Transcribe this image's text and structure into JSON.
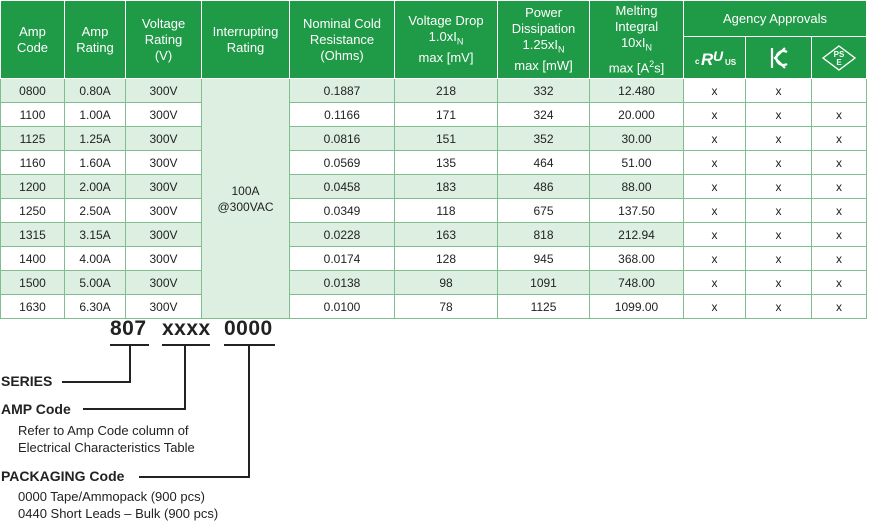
{
  "table": {
    "headers": {
      "amp_code": [
        "Amp",
        "Code"
      ],
      "amp_rating": [
        "Amp",
        "Rating"
      ],
      "voltage_rating": [
        "Voltage",
        "Rating",
        "(V)"
      ],
      "interrupting": [
        "Interrupting",
        "Rating"
      ],
      "nominal": [
        "Nominal Cold",
        "Resistance",
        "(Ohms)"
      ],
      "vdrop": [
        "Voltage Drop",
        "1.0xI",
        "N",
        "max [mV]"
      ],
      "power": [
        "Power",
        "Dissipation",
        "1.25xI",
        "N",
        "max [mW]"
      ],
      "melting": [
        "Melting",
        "Integral",
        "10xI",
        "N",
        "max [A",
        "2",
        "s]"
      ],
      "agency": "Agency Approvals"
    },
    "agency_icons": [
      "ul-recognized-icon",
      "kc-mark-icon",
      "pse-mark-icon"
    ],
    "interrupting_value": [
      "100A",
      "@300VAC"
    ],
    "rows": [
      {
        "code": "0800",
        "rating": "0.80A",
        "voltage": "300V",
        "resistance": "0.1887",
        "vdrop": "218",
        "power": "332",
        "melting": "12.480",
        "ul": "x",
        "kc": "x",
        "pse": ""
      },
      {
        "code": "1100",
        "rating": "1.00A",
        "voltage": "300V",
        "resistance": "0.1166",
        "vdrop": "171",
        "power": "324",
        "melting": "20.000",
        "ul": "x",
        "kc": "x",
        "pse": "x"
      },
      {
        "code": "1125",
        "rating": "1.25A",
        "voltage": "300V",
        "resistance": "0.0816",
        "vdrop": "151",
        "power": "352",
        "melting": "30.00",
        "ul": "x",
        "kc": "x",
        "pse": "x"
      },
      {
        "code": "1160",
        "rating": "1.60A",
        "voltage": "300V",
        "resistance": "0.0569",
        "vdrop": "135",
        "power": "464",
        "melting": "51.00",
        "ul": "x",
        "kc": "x",
        "pse": "x"
      },
      {
        "code": "1200",
        "rating": "2.00A",
        "voltage": "300V",
        "resistance": "0.0458",
        "vdrop": "183",
        "power": "486",
        "melting": "88.00",
        "ul": "x",
        "kc": "x",
        "pse": "x"
      },
      {
        "code": "1250",
        "rating": "2.50A",
        "voltage": "300V",
        "resistance": "0.0349",
        "vdrop": "118",
        "power": "675",
        "melting": "137.50",
        "ul": "x",
        "kc": "x",
        "pse": "x"
      },
      {
        "code": "1315",
        "rating": "3.15A",
        "voltage": "300V",
        "resistance": "0.0228",
        "vdrop": "163",
        "power": "818",
        "melting": "212.94",
        "ul": "x",
        "kc": "x",
        "pse": "x"
      },
      {
        "code": "1400",
        "rating": "4.00A",
        "voltage": "300V",
        "resistance": "0.0174",
        "vdrop": "128",
        "power": "945",
        "melting": "368.00",
        "ul": "x",
        "kc": "x",
        "pse": "x"
      },
      {
        "code": "1500",
        "rating": "5.00A",
        "voltage": "300V",
        "resistance": "0.0138",
        "vdrop": "98",
        "power": "1091",
        "melting": "748.00",
        "ul": "x",
        "kc": "x",
        "pse": "x"
      },
      {
        "code": "1630",
        "rating": "6.30A",
        "voltage": "300V",
        "resistance": "0.0100",
        "vdrop": "78",
        "power": "1125",
        "melting": "1099.00",
        "ul": "x",
        "kc": "x",
        "pse": "x"
      }
    ],
    "colors": {
      "header_green": "#1f9a47",
      "shade": "#dcefe0"
    }
  },
  "ordering": {
    "part_number": {
      "series": "807",
      "amp": "xxxx",
      "packaging": "0000"
    },
    "series_label": "SERIES",
    "amp_label": "AMP Code",
    "amp_desc": [
      "Refer to Amp Code column of",
      "Electrical Characteristics Table"
    ],
    "packaging_label": "PACKAGING Code",
    "packaging_desc": [
      "0000 Tape/Ammopack (900 pcs)",
      "0440 Short Leads – Bulk (900 pcs)"
    ]
  }
}
